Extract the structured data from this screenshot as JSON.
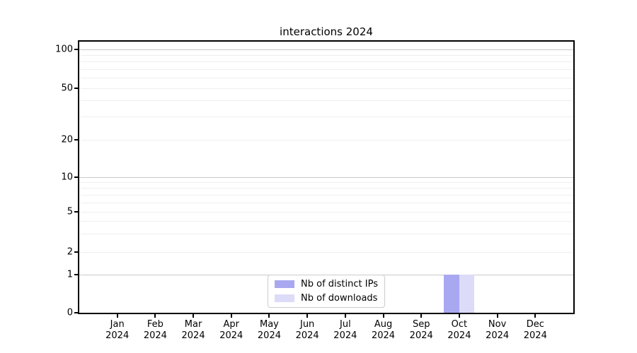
{
  "title": "interactions 2024",
  "chart_data": {
    "type": "bar",
    "title": "interactions 2024",
    "categories": [
      "Jan",
      "Feb",
      "Mar",
      "Apr",
      "May",
      "Jun",
      "Jul",
      "Aug",
      "Sep",
      "Oct",
      "Nov",
      "Dec"
    ],
    "year": "2024",
    "series": [
      {
        "name": "Nb of distinct IPs",
        "color": "#a8a8f0",
        "values": [
          0,
          0,
          0,
          0,
          0,
          0,
          0,
          0,
          0,
          1,
          0,
          0
        ]
      },
      {
        "name": "Nb of downloads",
        "color": "#dcdcf8",
        "values": [
          0,
          0,
          0,
          0,
          0,
          0,
          0,
          0,
          0,
          1,
          0,
          0
        ]
      }
    ],
    "xlabel": "",
    "ylabel": "",
    "yaxis": {
      "scale": "symlog",
      "ylim": [
        0,
        100
      ],
      "ticks": [
        0,
        1,
        2,
        5,
        10,
        20,
        50,
        100
      ],
      "gridlines_dark": [
        1,
        10,
        100
      ],
      "gridlines_light": [
        2,
        3,
        4,
        5,
        6,
        7,
        8,
        9,
        20,
        30,
        40,
        50,
        60,
        70,
        80,
        90
      ],
      "grid": "on"
    },
    "legend": {
      "position": "lower center",
      "entries": [
        "Nb of distinct IPs",
        "Nb of downloads"
      ]
    },
    "colors": {
      "bar_distinct_ips": "#a8a8f0",
      "bar_downloads": "#dcdcf8",
      "grid_major": "#c9c9c9",
      "grid_minor": "#efefef",
      "axis": "#000000",
      "legend_border": "#cccccc"
    }
  }
}
